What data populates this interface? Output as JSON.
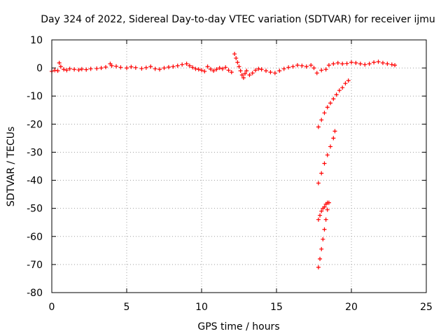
{
  "chart_data": {
    "type": "scatter",
    "title": "Day 324 of 2022, Sidereal Day-to-day VTEC variation (SDTVAR) for receiver ijmu",
    "xlabel": "GPS time / hours",
    "ylabel": "SDTVAR / TECUs",
    "xlim": [
      0,
      25
    ],
    "ylim": [
      -80,
      10
    ],
    "xticks": [
      0,
      5,
      10,
      15,
      20,
      25
    ],
    "yticks": [
      10,
      0,
      -10,
      -20,
      -30,
      -40,
      -50,
      -60,
      -70,
      -80
    ],
    "grid": true,
    "marker": "plus",
    "colors": {
      "series": "#ff0000",
      "frame": "#000000",
      "grid": "#a0a0a0"
    },
    "series": [
      {
        "points": [
          [
            0.0,
            -1.2
          ],
          [
            0.2,
            -0.8
          ],
          [
            0.4,
            -1.0
          ],
          [
            0.5,
            1.8
          ],
          [
            0.6,
            0.5
          ],
          [
            0.8,
            -0.5
          ],
          [
            1.0,
            -0.8
          ],
          [
            1.2,
            -0.3
          ],
          [
            1.5,
            -0.5
          ],
          [
            1.8,
            -0.7
          ],
          [
            2.0,
            -0.4
          ],
          [
            2.3,
            -0.6
          ],
          [
            2.6,
            -0.3
          ],
          [
            3.0,
            -0.2
          ],
          [
            3.3,
            0.0
          ],
          [
            3.6,
            0.3
          ],
          [
            3.9,
            1.5
          ],
          [
            4.0,
            0.8
          ],
          [
            4.3,
            0.6
          ],
          [
            4.6,
            0.2
          ],
          [
            5.0,
            0.0
          ],
          [
            5.3,
            0.4
          ],
          [
            5.6,
            0.1
          ],
          [
            6.0,
            -0.2
          ],
          [
            6.3,
            0.1
          ],
          [
            6.6,
            0.5
          ],
          [
            6.9,
            -0.3
          ],
          [
            7.2,
            -0.5
          ],
          [
            7.5,
            0.0
          ],
          [
            7.8,
            0.3
          ],
          [
            8.1,
            0.5
          ],
          [
            8.4,
            0.8
          ],
          [
            8.7,
            1.2
          ],
          [
            9.0,
            1.5
          ],
          [
            9.2,
            0.8
          ],
          [
            9.4,
            0.2
          ],
          [
            9.6,
            -0.3
          ],
          [
            9.8,
            -0.5
          ],
          [
            10.0,
            -0.8
          ],
          [
            10.2,
            -1.2
          ],
          [
            10.4,
            0.5
          ],
          [
            10.6,
            -0.4
          ],
          [
            10.8,
            -1.0
          ],
          [
            11.0,
            -0.5
          ],
          [
            11.2,
            0.0
          ],
          [
            11.4,
            -0.3
          ],
          [
            11.6,
            0.2
          ],
          [
            11.8,
            -0.8
          ],
          [
            12.0,
            -1.5
          ],
          [
            12.2,
            5.0
          ],
          [
            12.3,
            3.5
          ],
          [
            12.4,
            2.0
          ],
          [
            12.5,
            0.5
          ],
          [
            12.6,
            -1.0
          ],
          [
            12.7,
            -2.5
          ],
          [
            12.8,
            -3.5
          ],
          [
            12.9,
            -2.0
          ],
          [
            13.0,
            -1.0
          ],
          [
            13.2,
            -2.5
          ],
          [
            13.4,
            -1.8
          ],
          [
            13.6,
            -0.8
          ],
          [
            13.8,
            -0.3
          ],
          [
            14.0,
            -0.5
          ],
          [
            14.3,
            -1.0
          ],
          [
            14.6,
            -1.5
          ],
          [
            14.9,
            -1.8
          ],
          [
            15.2,
            -1.0
          ],
          [
            15.5,
            -0.3
          ],
          [
            15.8,
            0.2
          ],
          [
            16.1,
            0.5
          ],
          [
            16.4,
            1.0
          ],
          [
            16.7,
            0.8
          ],
          [
            17.0,
            0.5
          ],
          [
            17.3,
            1.0
          ],
          [
            17.5,
            0.0
          ],
          [
            17.7,
            -1.8
          ],
          [
            18.0,
            -0.8
          ],
          [
            18.3,
            -0.5
          ],
          [
            18.5,
            1.0
          ],
          [
            18.8,
            1.5
          ],
          [
            19.1,
            1.8
          ],
          [
            19.4,
            1.5
          ],
          [
            19.7,
            1.6
          ],
          [
            20.0,
            2.0
          ],
          [
            20.3,
            1.8
          ],
          [
            20.6,
            1.5
          ],
          [
            20.9,
            1.2
          ],
          [
            21.2,
            1.5
          ],
          [
            21.5,
            2.0
          ],
          [
            21.8,
            2.2
          ],
          [
            22.1,
            1.8
          ],
          [
            22.4,
            1.5
          ],
          [
            22.7,
            1.2
          ],
          [
            22.9,
            1.0
          ],
          [
            17.8,
            -21.0
          ],
          [
            18.0,
            -18.5
          ],
          [
            18.2,
            -16.0
          ],
          [
            18.4,
            -14.0
          ],
          [
            18.6,
            -12.5
          ],
          [
            18.8,
            -11.0
          ],
          [
            19.0,
            -9.5
          ],
          [
            19.2,
            -8.0
          ],
          [
            19.4,
            -7.0
          ],
          [
            19.6,
            -5.5
          ],
          [
            19.8,
            -4.5
          ],
          [
            17.8,
            -41.0
          ],
          [
            18.0,
            -37.5
          ],
          [
            18.2,
            -34.0
          ],
          [
            18.4,
            -31.0
          ],
          [
            18.6,
            -28.0
          ],
          [
            18.8,
            -25.0
          ],
          [
            18.9,
            -22.5
          ],
          [
            17.8,
            -54.0
          ],
          [
            17.9,
            -52.5
          ],
          [
            18.0,
            -51.0
          ],
          [
            18.1,
            -50.0
          ],
          [
            18.2,
            -49.5
          ],
          [
            18.3,
            -48.5
          ],
          [
            18.4,
            -48.0
          ],
          [
            17.8,
            -71.0
          ],
          [
            17.9,
            -68.0
          ],
          [
            18.0,
            -64.5
          ],
          [
            18.1,
            -61.0
          ],
          [
            18.2,
            -57.5
          ],
          [
            18.3,
            -54.0
          ],
          [
            18.4,
            -50.5
          ],
          [
            18.5,
            -48.0
          ]
        ]
      }
    ]
  }
}
